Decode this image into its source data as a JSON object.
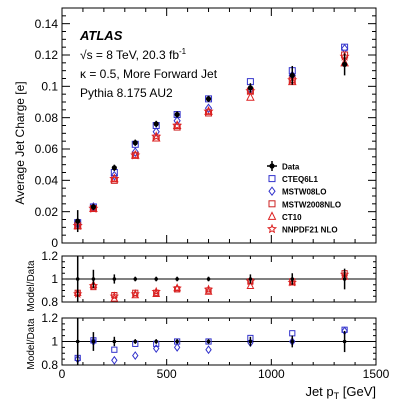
{
  "chart_data": {
    "type": "scatter",
    "x": [
      75,
      150,
      250,
      350,
      450,
      550,
      700,
      900,
      1100,
      1350
    ],
    "xlabel": "Jet p",
    "xlabel_sub": "T",
    "xlabel_unit": " [GeV]",
    "xlim": [
      0,
      1500
    ],
    "xticks": [
      "0",
      "500",
      "1000",
      "1500"
    ],
    "annotations": {
      "experiment": "ATLAS",
      "energy_line": "√s = 8 TeV, 20.3 fb",
      "energy_sup": "-1",
      "kappa_line": "κ = 0.5, More Forward Jet",
      "generator_line": "Pythia 8.175 AU2"
    },
    "legend_placement": "bottom-right",
    "main": {
      "ylabel": "Average Jet Charge [e]",
      "ylim": [
        0,
        0.15
      ],
      "yticks": [
        "0",
        "0.02",
        "0.04",
        "0.06",
        "0.08",
        "0.1",
        "0.12",
        "0.14"
      ],
      "data": {
        "name": "Data",
        "color": "#000000",
        "y": [
          0.014,
          0.023,
          0.048,
          0.064,
          0.076,
          0.082,
          0.092,
          0.099,
          0.107,
          0.114
        ],
        "err": [
          0.007,
          0.002,
          0.002,
          0.002,
          0.002,
          0.002,
          0.002,
          0.003,
          0.006,
          0.007
        ]
      },
      "models": [
        {
          "name": "CTEQ6L1",
          "color": "#3333cc",
          "marker": "open-square",
          "y": [
            0.013,
            0.023,
            0.045,
            0.063,
            0.075,
            0.082,
            0.092,
            0.103,
            0.11,
            0.125
          ]
        },
        {
          "name": "MSTW08LO",
          "color": "#3333cc",
          "marker": "open-diamond",
          "y": [
            0.012,
            0.023,
            0.043,
            0.058,
            0.071,
            0.078,
            0.086,
            0.098,
            0.107,
            0.124
          ]
        },
        {
          "name": "MSTW2008NLO",
          "color": "#cc2222",
          "marker": "open-square",
          "y": [
            0.011,
            0.022,
            0.04,
            0.056,
            0.067,
            0.074,
            0.083,
            0.097,
            0.104,
            0.12
          ]
        },
        {
          "name": "CT10",
          "color": "#dd2222",
          "marker": "open-triangle",
          "y": [
            0.011,
            0.022,
            0.041,
            0.056,
            0.067,
            0.075,
            0.084,
            0.093,
            0.103,
            0.115
          ]
        },
        {
          "name": "NNPDF21 NLO",
          "color": "#dd2222",
          "marker": "star",
          "y": [
            0.011,
            0.022,
            0.041,
            0.056,
            0.068,
            0.075,
            0.084,
            0.097,
            0.104,
            0.119
          ]
        }
      ]
    },
    "ratio_red": {
      "ylabel": "Model/Data",
      "ylim": [
        0.8,
        1.2
      ],
      "yticks": [
        "0.8",
        "1",
        "1.2"
      ],
      "data_err": [
        0.35,
        0.08,
        0.04,
        0.02,
        0.02,
        0.02,
        0.02,
        0.04,
        0.05,
        0.09
      ],
      "models": [
        {
          "ref": "MSTW2008NLO",
          "y": [
            0.88,
            0.93,
            0.86,
            0.88,
            0.88,
            0.91,
            0.9,
            0.98,
            0.98,
            1.05
          ]
        },
        {
          "ref": "CT10",
          "y": [
            0.88,
            0.95,
            0.83,
            0.86,
            0.87,
            0.92,
            0.89,
            0.94,
            0.97,
            1.02
          ]
        },
        {
          "ref": "NNPDF21 NLO",
          "y": [
            0.87,
            0.94,
            0.85,
            0.87,
            0.89,
            0.92,
            0.91,
            0.98,
            0.97,
            1.04
          ]
        }
      ]
    },
    "ratio_blue": {
      "ylabel": "Model/Data",
      "ylim": [
        0.8,
        1.2
      ],
      "yticks": [
        "0.8",
        "1",
        "1.2"
      ],
      "data_err": [
        0.35,
        0.08,
        0.04,
        0.02,
        0.02,
        0.02,
        0.02,
        0.04,
        0.05,
        0.09
      ],
      "models": [
        {
          "ref": "CTEQ6L1",
          "y": [
            0.86,
            1.01,
            0.93,
            0.98,
            0.98,
            1.0,
            1.0,
            1.03,
            1.07,
            1.1
          ]
        },
        {
          "ref": "MSTW08LO",
          "y": [
            0.85,
            1.0,
            0.84,
            0.88,
            0.94,
            0.95,
            0.93,
            0.99,
            1.0,
            1.09
          ]
        }
      ]
    }
  }
}
